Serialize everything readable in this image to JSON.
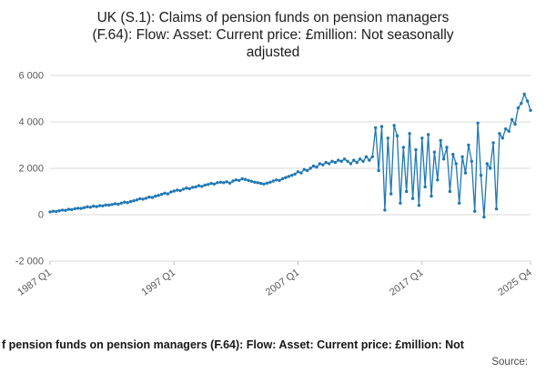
{
  "title_lines": [
    "UK (S.1): Claims of pension funds on pension managers",
    "(F.64): Flow: Asset: Current price: £million: Not seasonally",
    "adjusted"
  ],
  "footer": {
    "caption": "f pension funds on pension managers (F.64): Flow: Asset: Current price: £million: Not",
    "source": "Source:"
  },
  "chart_data": {
    "type": "line",
    "title": "UK (S.1): Claims of pension funds on pension managers (F.64): Flow: Asset: Current price: £million: Not seasonally adjusted",
    "xlabel": "",
    "ylabel": "",
    "x_start": "1987 Q1",
    "x_end": "2025 Q4",
    "frequency": "quarterly",
    "ylim": [
      -2000,
      6000
    ],
    "y_ticks": [
      -2000,
      0,
      2000,
      4000,
      6000
    ],
    "y_tick_labels": [
      "-2 000",
      "0",
      "2 000",
      "4 000",
      "6 000"
    ],
    "x_ticks": [
      {
        "label": "1987 Q1",
        "pos": 0
      },
      {
        "label": "1997 Q1",
        "pos": 40
      },
      {
        "label": "2007 Q1",
        "pos": 80
      },
      {
        "label": "2017 Q1",
        "pos": 120
      },
      {
        "label": "2025 Q4",
        "pos": 155
      }
    ],
    "grid": true,
    "legend": false,
    "marker": "circle",
    "line_color": "#1f77b4",
    "grid_color": "#d9d9d9",
    "values": [
      120,
      150,
      140,
      170,
      200,
      190,
      230,
      220,
      260,
      280,
      270,
      300,
      340,
      320,
      370,
      350,
      390,
      380,
      420,
      410,
      440,
      470,
      450,
      500,
      540,
      520,
      570,
      600,
      640,
      690,
      670,
      710,
      760,
      740,
      800,
      830,
      880,
      930,
      900,
      980,
      1020,
      1060,
      1040,
      1100,
      1150,
      1120,
      1180,
      1200,
      1250,
      1220,
      1280,
      1300,
      1350,
      1320,
      1380,
      1400,
      1380,
      1420,
      1360,
      1450,
      1500,
      1480,
      1550,
      1520,
      1480,
      1440,
      1400,
      1380,
      1350,
      1320,
      1360,
      1400,
      1450,
      1500,
      1480,
      1550,
      1600,
      1650,
      1700,
      1750,
      1850,
      1800,
      1950,
      1900,
      2000,
      2100,
      2050,
      2200,
      2150,
      2250,
      2200,
      2300,
      2250,
      2350,
      2300,
      2400,
      2300,
      2200,
      2350,
      2250,
      2400,
      2300,
      2500,
      2350,
      2500,
      3750,
      1900,
      3800,
      200,
      3300,
      900,
      3850,
      3400,
      500,
      2900,
      1000,
      3500,
      700,
      2800,
      400,
      3300,
      1200,
      3450,
      800,
      2700,
      1500,
      3200,
      2400,
      2900,
      1000,
      2600,
      2200,
      500,
      2500,
      1800,
      3000,
      2300,
      150,
      3950,
      1700,
      -100,
      2200,
      2000,
      3100,
      250,
      3500,
      3300,
      3700,
      3600,
      4100,
      3900,
      4600,
      4800,
      5200,
      4900,
      4500
    ]
  }
}
